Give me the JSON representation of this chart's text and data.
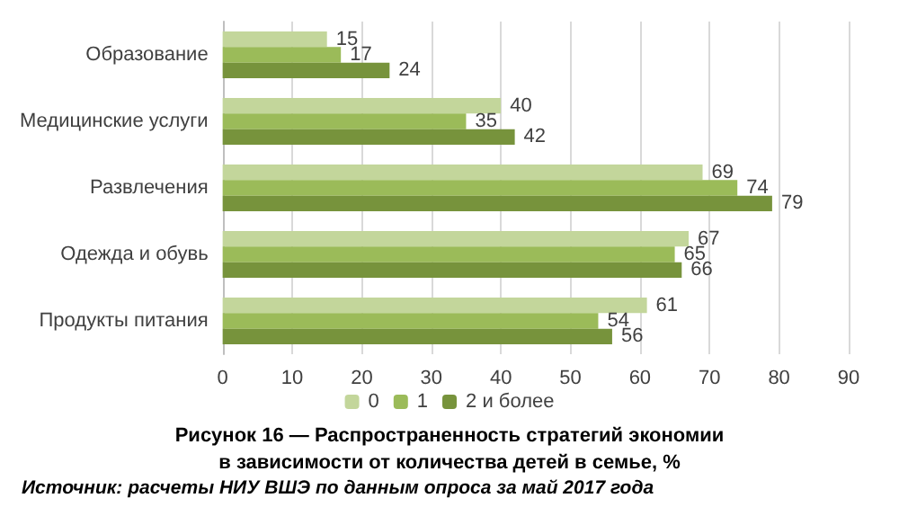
{
  "chart_data": {
    "type": "bar",
    "orientation": "horizontal",
    "title": "Рисунок 16 — Распространенность стратегий экономии\nв зависимости от количества детей в семье, %",
    "categories": [
      "Образование",
      "Медицинские услуги",
      "Развлечения",
      "Одежда и обувь",
      "Продукты питания"
    ],
    "series": [
      {
        "name": "0",
        "color": "#c3d69b",
        "values": [
          15,
          40,
          69,
          67,
          61
        ]
      },
      {
        "name": "1",
        "color": "#9bbb59",
        "values": [
          17,
          35,
          74,
          65,
          54
        ]
      },
      {
        "name": "2 и более",
        "color": "#77933c",
        "values": [
          24,
          42,
          79,
          66,
          56
        ]
      }
    ],
    "xlim": [
      0,
      90
    ],
    "xticks": [
      0,
      10,
      20,
      30,
      40,
      50,
      60,
      70,
      80,
      90
    ],
    "grid": "x",
    "legend": "bottom",
    "data_labels": true,
    "annotations": [
      "Источник: расчеты НИУ ВШЭ по данным опроса за май 2017 года"
    ]
  }
}
